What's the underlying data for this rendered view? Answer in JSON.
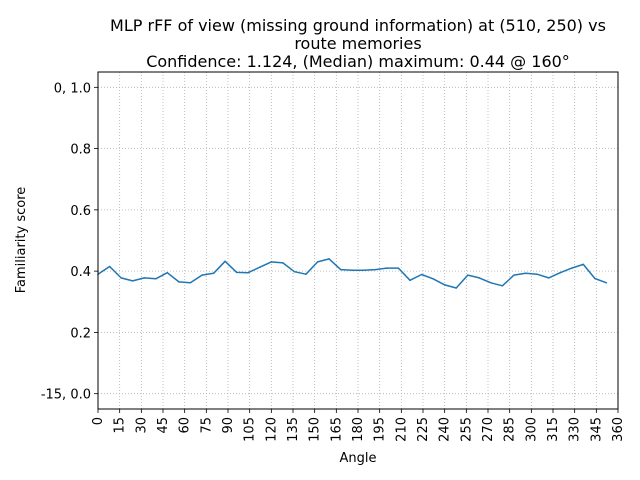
{
  "chart_data": {
    "type": "line",
    "title_lines": [
      "MLP rFF of view (missing ground information) at (510, 250) vs",
      "route memories",
      "Confidence: 1.124, (Median) maximum: 0.44 @ 160°"
    ],
    "xlabel": "Angle",
    "ylabel": "Familiarity score",
    "xlim": [
      0,
      360
    ],
    "ylim": [
      -0.05,
      1.05
    ],
    "x_ticks": [
      0,
      15,
      30,
      45,
      60,
      75,
      90,
      105,
      120,
      135,
      150,
      165,
      180,
      195,
      210,
      225,
      240,
      255,
      270,
      285,
      300,
      315,
      330,
      345,
      360
    ],
    "y_ticks": [
      {
        "value": 0.0,
        "label": "-15, 0.0"
      },
      {
        "value": 0.2,
        "label": "0.2"
      },
      {
        "value": 0.4,
        "label": "0.4"
      },
      {
        "value": 0.6,
        "label": "0.6"
      },
      {
        "value": 0.8,
        "label": "0.8"
      },
      {
        "value": 1.0,
        "label": "0, 1.0"
      }
    ],
    "grid": true,
    "line_color": "#1f77b4",
    "series": [
      {
        "x": [
          0,
          8,
          16,
          24,
          32,
          40,
          48,
          56,
          64,
          72,
          80,
          88,
          96,
          104,
          112,
          120,
          128,
          136,
          144,
          152,
          160,
          168,
          176,
          184,
          192,
          200,
          208,
          216,
          224,
          232,
          240,
          248,
          256,
          264,
          272,
          280,
          288,
          296,
          304,
          312,
          320,
          328,
          336,
          344,
          352
        ],
        "values": [
          0.39,
          0.415,
          0.378,
          0.368,
          0.378,
          0.375,
          0.395,
          0.365,
          0.362,
          0.387,
          0.393,
          0.432,
          0.396,
          0.395,
          0.413,
          0.43,
          0.427,
          0.398,
          0.39,
          0.43,
          0.44,
          0.405,
          0.403,
          0.403,
          0.405,
          0.41,
          0.41,
          0.37,
          0.389,
          0.375,
          0.355,
          0.345,
          0.387,
          0.378,
          0.362,
          0.352,
          0.387,
          0.393,
          0.39,
          0.378,
          0.395,
          0.41,
          0.422,
          0.376,
          0.362
        ]
      }
    ]
  }
}
